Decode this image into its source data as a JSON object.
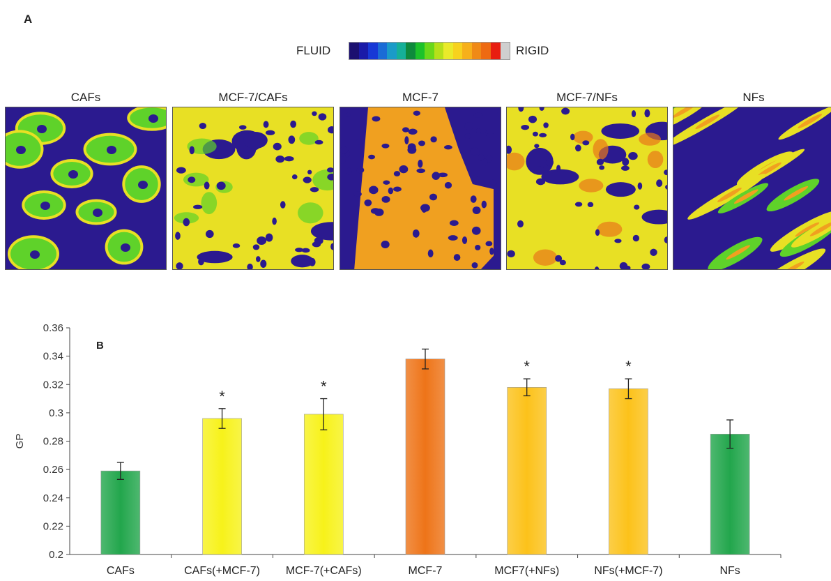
{
  "panel_a": {
    "letter": "A",
    "scale": {
      "left_label": "FLUID",
      "right_label": "RIGID",
      "colors": [
        "#1b1070",
        "#1a1aa8",
        "#1738d6",
        "#1a6cd6",
        "#1a9bc8",
        "#15b098",
        "#0e8a3c",
        "#1cc22a",
        "#6ad81a",
        "#b6e01a",
        "#eaea2a",
        "#f7d21e",
        "#f7b01a",
        "#f08a16",
        "#ee6a12",
        "#e81e10",
        "#cfcfcf"
      ]
    },
    "images": [
      {
        "title": "CAFs",
        "style": "sparse-cells"
      },
      {
        "title": "MCF-7/CAFs",
        "style": "mixed-dense"
      },
      {
        "title": "MCF-7",
        "style": "dense-orange"
      },
      {
        "title": "MCF-7/NFs",
        "style": "mixed-yellow"
      },
      {
        "title": "NFs",
        "style": "streaks"
      }
    ],
    "colors": {
      "background": "#2b1a8f",
      "green": "#5fd22a",
      "yellow": "#e8e024",
      "orange": "#f0a020",
      "dark_orange": "#e8781a"
    }
  },
  "chart_data": {
    "type": "bar",
    "panel_letter": "B",
    "categories": [
      "CAFs",
      "CAFs(+MCF-7)",
      "MCF-7(+CAFs)",
      "MCF-7",
      "MCF7(+NFs)",
      "NFs(+MCF-7)",
      "NFs"
    ],
    "values": [
      0.259,
      0.296,
      0.299,
      0.338,
      0.318,
      0.317,
      0.285
    ],
    "errors": [
      0.006,
      0.007,
      0.011,
      0.007,
      0.006,
      0.007,
      0.01
    ],
    "significance": [
      "",
      "*",
      "*",
      "",
      "*",
      "*",
      ""
    ],
    "bar_colors": [
      "#22a64c",
      "#f7f21a",
      "#f7f21a",
      "#ee7418",
      "#fcc21a",
      "#fcc21a",
      "#22a64c"
    ],
    "ylabel": "GP",
    "ylim": [
      0.2,
      0.36
    ],
    "yticks": [
      "0.2",
      "0.22",
      "0.24",
      "0.26",
      "0.28",
      "0.3",
      "0.32",
      "0.34",
      "0.36"
    ],
    "grid": false,
    "legend": "none"
  }
}
